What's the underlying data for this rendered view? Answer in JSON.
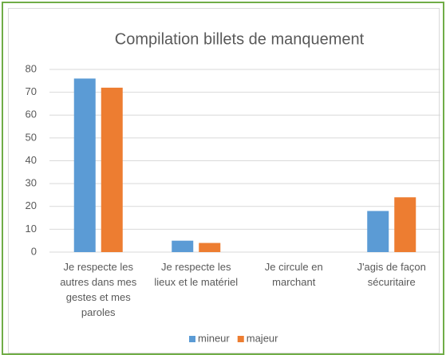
{
  "chart_data": {
    "type": "bar",
    "title": "Compilation billets de manquement",
    "categories": [
      "Je respecte les autres dans mes gestes et mes paroles",
      "Je respecte les lieux et le matériel",
      "Je circule en marchant",
      "J'agis de façon sécuritaire"
    ],
    "series": [
      {
        "name": "mineur",
        "color": "#5b9bd5",
        "values": [
          76,
          5,
          0,
          18
        ]
      },
      {
        "name": "majeur",
        "color": "#ed7d31",
        "values": [
          72,
          4,
          0,
          24
        ]
      }
    ],
    "ylim": [
      0,
      80
    ],
    "yticks": [
      0,
      10,
      20,
      30,
      40,
      50,
      60,
      70,
      80
    ],
    "grid": true,
    "legend": "bottom"
  }
}
